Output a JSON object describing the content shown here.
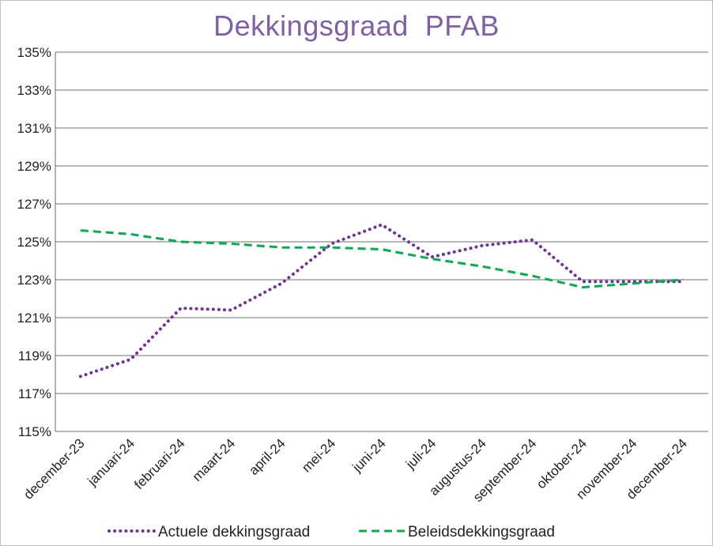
{
  "chart_data": {
    "type": "line",
    "title": "Dekkingsgraad  PFAB",
    "xlabel": "",
    "ylabel": "",
    "categories": [
      "december-23",
      "januari-24",
      "februari-24",
      "maart-24",
      "april-24",
      "mei-24",
      "juni-24",
      "juli-24",
      "augustus-24",
      "september-24",
      "oktober-24",
      "november-24",
      "december-24"
    ],
    "ylim": [
      115,
      135
    ],
    "yticks": [
      115,
      117,
      119,
      121,
      123,
      125,
      127,
      129,
      131,
      133,
      135
    ],
    "ytick_labels": [
      "115%",
      "117%",
      "119%",
      "121%",
      "123%",
      "125%",
      "127%",
      "129%",
      "131%",
      "133%",
      "135%"
    ],
    "grid": true,
    "legend_position": "bottom",
    "series": [
      {
        "name": "Actuele dekkingsgraad",
        "color": "#7030a0",
        "style": "dotted",
        "values": [
          117.9,
          118.8,
          121.5,
          121.4,
          122.8,
          124.9,
          125.9,
          124.2,
          124.8,
          125.1,
          122.9,
          122.9,
          122.9
        ]
      },
      {
        "name": "Beleidsdekkingsgraad",
        "color": "#00b050",
        "style": "dashed",
        "values": [
          125.6,
          125.4,
          125.0,
          124.9,
          124.7,
          124.7,
          124.6,
          124.1,
          123.7,
          123.2,
          122.6,
          122.8,
          123.0
        ]
      }
    ]
  }
}
